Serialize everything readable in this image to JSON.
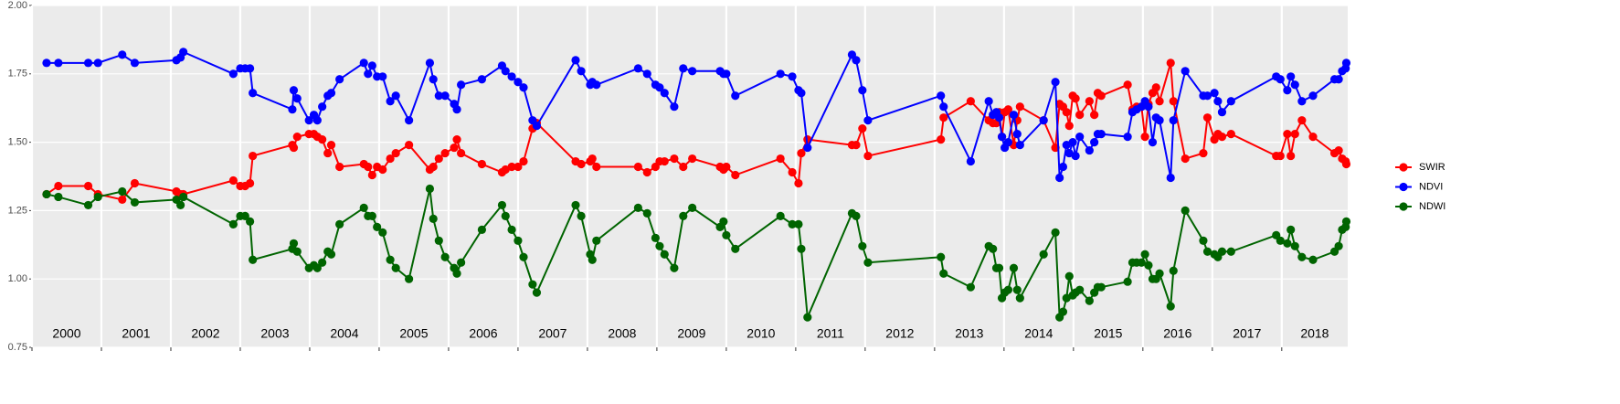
{
  "chart_data": {
    "type": "line",
    "x": [
      2000.21,
      2000.38,
      2000.81,
      2000.95,
      2001.3,
      2001.48,
      2002.08,
      2002.14,
      2002.18,
      2002.9,
      2003.0,
      2003.07,
      2003.14,
      2003.18,
      2003.75,
      2003.77,
      2003.82,
      2003.99,
      2004.06,
      2004.11,
      2004.18,
      2004.26,
      2004.31,
      2004.43,
      2004.78,
      2004.84,
      2004.9,
      2004.97,
      2005.05,
      2005.16,
      2005.24,
      2005.43,
      2005.73,
      2005.78,
      2005.86,
      2005.95,
      2006.08,
      2006.12,
      2006.18,
      2006.48,
      2006.77,
      2006.82,
      2006.91,
      2007.0,
      2007.08,
      2007.21,
      2007.27,
      2007.83,
      2007.91,
      2008.04,
      2008.07,
      2008.13,
      2008.73,
      2008.86,
      2008.98,
      2009.04,
      2009.11,
      2009.25,
      2009.38,
      2009.51,
      2009.91,
      2009.96,
      2010.0,
      2010.13,
      2010.78,
      2010.95,
      2011.04,
      2011.08,
      2011.17,
      2011.81,
      2011.87,
      2011.96,
      2012.04,
      2013.09,
      2013.13,
      2013.52,
      2013.78,
      2013.84,
      2013.89,
      2013.93,
      2013.97,
      2014.01,
      2014.06,
      2014.14,
      2014.19,
      2014.23,
      2014.57,
      2014.74,
      2014.8,
      2014.85,
      2014.9,
      2014.94,
      2014.99,
      2015.03,
      2015.09,
      2015.23,
      2015.3,
      2015.35,
      2015.4,
      2015.78,
      2015.85,
      2015.91,
      2015.98,
      2016.03,
      2016.08,
      2016.14,
      2016.19,
      2016.24,
      2016.4,
      2016.44,
      2016.61,
      2016.87,
      2016.93,
      2017.03,
      2017.08,
      2017.14,
      2017.27,
      2017.92,
      2017.98,
      2018.08,
      2018.13,
      2018.19,
      2018.29,
      2018.45,
      2018.76,
      2018.82,
      2018.87,
      2018.92,
      2018.93
    ],
    "series": [
      {
        "name": "SWIR",
        "color": "#ff0000",
        "values": [
          1.31,
          1.34,
          1.34,
          1.31,
          1.29,
          1.35,
          1.32,
          1.31,
          1.31,
          1.36,
          1.34,
          1.34,
          1.35,
          1.45,
          1.49,
          1.48,
          1.52,
          1.53,
          1.53,
          1.52,
          1.51,
          1.46,
          1.49,
          1.41,
          1.42,
          1.41,
          1.38,
          1.41,
          1.4,
          1.44,
          1.46,
          1.49,
          1.4,
          1.41,
          1.44,
          1.46,
          1.48,
          1.51,
          1.46,
          1.42,
          1.39,
          1.4,
          1.41,
          1.41,
          1.43,
          1.55,
          1.57,
          1.43,
          1.42,
          1.43,
          1.44,
          1.41,
          1.41,
          1.39,
          1.41,
          1.43,
          1.43,
          1.44,
          1.41,
          1.44,
          1.41,
          1.4,
          1.41,
          1.38,
          1.44,
          1.39,
          1.35,
          1.46,
          1.51,
          1.49,
          1.49,
          1.55,
          1.45,
          1.51,
          1.59,
          1.65,
          1.58,
          1.57,
          1.57,
          1.61,
          1.52,
          1.61,
          1.62,
          1.49,
          1.58,
          1.63,
          1.58,
          1.48,
          1.64,
          1.63,
          1.61,
          1.56,
          1.67,
          1.66,
          1.6,
          1.65,
          1.6,
          1.68,
          1.67,
          1.71,
          1.62,
          1.63,
          1.63,
          1.52,
          1.64,
          1.68,
          1.7,
          1.65,
          1.79,
          1.65,
          1.44,
          1.46,
          1.59,
          1.51,
          1.53,
          1.52,
          1.53,
          1.45,
          1.45,
          1.53,
          1.45,
          1.53,
          1.58,
          1.52,
          1.46,
          1.47,
          1.44,
          1.43,
          1.42
        ]
      },
      {
        "name": "NDVI",
        "color": "#0000ff",
        "values": [
          1.79,
          1.79,
          1.79,
          1.79,
          1.82,
          1.79,
          1.8,
          1.81,
          1.83,
          1.75,
          1.77,
          1.77,
          1.77,
          1.68,
          1.62,
          1.69,
          1.66,
          1.58,
          1.6,
          1.58,
          1.63,
          1.67,
          1.68,
          1.73,
          1.79,
          1.75,
          1.78,
          1.74,
          1.74,
          1.65,
          1.67,
          1.58,
          1.79,
          1.73,
          1.67,
          1.67,
          1.64,
          1.62,
          1.71,
          1.73,
          1.78,
          1.76,
          1.74,
          1.72,
          1.7,
          1.58,
          1.56,
          1.8,
          1.76,
          1.71,
          1.72,
          1.71,
          1.77,
          1.75,
          1.71,
          1.7,
          1.68,
          1.63,
          1.77,
          1.76,
          1.76,
          1.75,
          1.75,
          1.67,
          1.75,
          1.74,
          1.69,
          1.68,
          1.48,
          1.82,
          1.8,
          1.69,
          1.58,
          1.67,
          1.63,
          1.43,
          1.65,
          1.6,
          1.61,
          1.59,
          1.52,
          1.48,
          1.5,
          1.6,
          1.53,
          1.49,
          1.58,
          1.72,
          1.37,
          1.41,
          1.49,
          1.46,
          1.5,
          1.45,
          1.52,
          1.47,
          1.5,
          1.53,
          1.53,
          1.52,
          1.61,
          1.62,
          1.63,
          1.65,
          1.63,
          1.5,
          1.59,
          1.58,
          1.37,
          1.58,
          1.76,
          1.67,
          1.67,
          1.68,
          1.65,
          1.61,
          1.65,
          1.74,
          1.73,
          1.69,
          1.74,
          1.71,
          1.65,
          1.67,
          1.73,
          1.73,
          1.76,
          1.77,
          1.79
        ]
      },
      {
        "name": "NDWI",
        "color": "#006400",
        "values": [
          1.31,
          1.3,
          1.27,
          1.3,
          1.32,
          1.28,
          1.29,
          1.27,
          1.3,
          1.2,
          1.23,
          1.23,
          1.21,
          1.07,
          1.11,
          1.13,
          1.1,
          1.04,
          1.05,
          1.04,
          1.06,
          1.1,
          1.09,
          1.2,
          1.26,
          1.23,
          1.23,
          1.19,
          1.17,
          1.07,
          1.04,
          1.0,
          1.33,
          1.22,
          1.14,
          1.08,
          1.04,
          1.02,
          1.06,
          1.18,
          1.27,
          1.23,
          1.18,
          1.14,
          1.08,
          0.98,
          0.95,
          1.27,
          1.23,
          1.09,
          1.07,
          1.14,
          1.26,
          1.24,
          1.15,
          1.12,
          1.09,
          1.04,
          1.23,
          1.26,
          1.19,
          1.21,
          1.16,
          1.11,
          1.23,
          1.2,
          1.2,
          1.11,
          0.86,
          1.24,
          1.23,
          1.12,
          1.06,
          1.08,
          1.02,
          0.97,
          1.12,
          1.11,
          1.04,
          1.04,
          0.93,
          0.95,
          0.96,
          1.04,
          0.96,
          0.93,
          1.09,
          1.17,
          0.86,
          0.88,
          0.93,
          1.01,
          0.94,
          0.95,
          0.96,
          0.92,
          0.95,
          0.97,
          0.97,
          0.99,
          1.06,
          1.06,
          1.06,
          1.09,
          1.05,
          1.0,
          1.0,
          1.02,
          0.9,
          1.03,
          1.25,
          1.14,
          1.1,
          1.09,
          1.08,
          1.1,
          1.1,
          1.16,
          1.14,
          1.13,
          1.18,
          1.12,
          1.08,
          1.07,
          1.1,
          1.12,
          1.18,
          1.19,
          1.21
        ]
      }
    ],
    "xlim": [
      2000,
      2018.95
    ],
    "xticks": [
      2000,
      2001,
      2002,
      2003,
      2004,
      2005,
      2006,
      2007,
      2008,
      2009,
      2010,
      2011,
      2012,
      2013,
      2014,
      2015,
      2016,
      2017,
      2018
    ],
    "ylim": [
      0.75,
      2.0
    ],
    "yticks": [
      0.75,
      {
        "value": 1,
        "label": "1.00"
      },
      1.25,
      {
        "value": 1.5,
        "label": "1.50"
      },
      1.75,
      {
        "value": 2,
        "label": "2.00"
      }
    ],
    "grid": true,
    "legend": "right"
  }
}
